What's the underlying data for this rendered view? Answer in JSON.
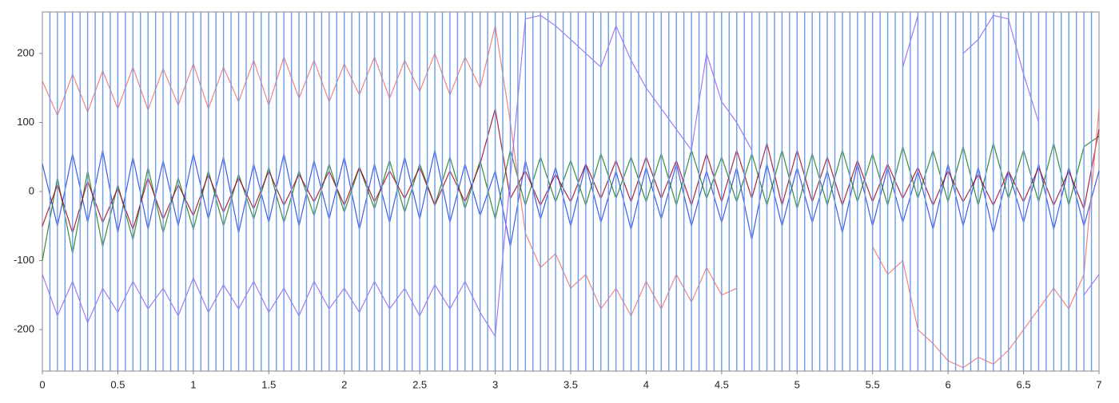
{
  "chart_data": {
    "type": "line",
    "x": [
      0,
      0.1,
      0.2,
      0.3,
      0.4,
      0.5,
      0.6,
      0.7,
      0.8,
      0.9,
      1,
      1.1,
      1.2,
      1.3,
      1.4,
      1.5,
      1.6,
      1.7,
      1.8,
      1.9,
      2,
      2.1,
      2.2,
      2.3,
      2.4,
      2.5,
      2.6,
      2.7,
      2.8,
      2.9,
      3,
      3.1,
      3.2,
      3.3,
      3.4,
      3.5,
      3.6,
      3.7,
      3.8,
      3.9,
      4,
      4.1,
      4.2,
      4.3,
      4.4,
      4.5,
      4.6,
      4.7,
      4.8,
      4.9,
      5,
      5.1,
      5.2,
      5.3,
      5.4,
      5.5,
      5.6,
      5.7,
      5.8,
      5.9,
      6,
      6.1,
      6.2,
      6.3,
      6.4,
      6.5,
      6.6,
      6.7,
      6.8,
      6.9,
      7
    ],
    "series": [
      {
        "color": "#1f3fe0",
        "values": [
          40,
          -50,
          55,
          -45,
          60,
          -60,
          50,
          -55,
          45,
          -50,
          55,
          -40,
          50,
          -60,
          40,
          -45,
          55,
          -50,
          45,
          -40,
          50,
          -55,
          40,
          -45,
          50,
          -40,
          60,
          -45,
          40,
          -35,
          30,
          -80,
          45,
          -40,
          35,
          -50,
          40,
          -45,
          30,
          -55,
          35,
          -40,
          40,
          -50,
          30,
          -45,
          35,
          -70,
          40,
          -50,
          35,
          -45,
          30,
          -60,
          40,
          -50,
          35,
          -45,
          30,
          -55,
          40,
          -50,
          35,
          -60,
          30,
          -45,
          40,
          -55,
          35,
          -50,
          30
        ]
      },
      {
        "color": "#1a7a1a",
        "values": [
          -100,
          20,
          -90,
          30,
          -80,
          10,
          -70,
          35,
          -60,
          20,
          -55,
          30,
          -50,
          25,
          -40,
          35,
          -45,
          30,
          -35,
          40,
          -30,
          35,
          -25,
          45,
          -30,
          40,
          -20,
          50,
          -25,
          45,
          -40,
          60,
          -20,
          50,
          -15,
          45,
          -20,
          55,
          -10,
          50,
          -15,
          55,
          -20,
          60,
          -10,
          50,
          -15,
          55,
          -20,
          60,
          -25,
          55,
          -20,
          60,
          -15,
          55,
          -20,
          65,
          -10,
          60,
          -15,
          65,
          -20,
          70,
          -10,
          60,
          -15,
          70,
          -20,
          65,
          80
        ]
      },
      {
        "color": "#a00020",
        "values": [
          -50,
          10,
          -60,
          15,
          -45,
          5,
          -55,
          20,
          -40,
          10,
          -35,
          25,
          -30,
          20,
          -25,
          30,
          -20,
          25,
          -15,
          30,
          -20,
          35,
          -15,
          30,
          -10,
          35,
          -20,
          30,
          -15,
          40,
          120,
          -10,
          30,
          -20,
          25,
          -15,
          40,
          -10,
          45,
          -15,
          50,
          -10,
          45,
          -20,
          55,
          -15,
          60,
          -10,
          70,
          -20,
          60,
          -15,
          50,
          -20,
          45,
          -15,
          40,
          -10,
          35,
          -20,
          30,
          -15,
          25,
          -20,
          30,
          -15,
          35,
          -20,
          30,
          -25,
          90
        ]
      },
      {
        "color": "#f07070",
        "values": [
          160,
          110,
          170,
          115,
          175,
          120,
          180,
          118,
          178,
          125,
          185,
          120,
          180,
          130,
          190,
          125,
          195,
          135,
          190,
          130,
          185,
          140,
          195,
          135,
          190,
          145,
          200,
          140,
          195,
          150,
          240,
          100,
          -60,
          -110,
          -90,
          -140,
          -120,
          -170,
          -140,
          -180,
          -130,
          -170,
          -120,
          -160,
          -110,
          -150,
          -140,
          null,
          null,
          null,
          null,
          null,
          null,
          null,
          null,
          -80,
          -120,
          -100,
          -200,
          -220,
          -245,
          -255,
          -240,
          -250,
          -230,
          -200,
          -170,
          -140,
          -170,
          -120,
          120
        ]
      },
      {
        "color": "#9a60f0",
        "values": [
          -120,
          -180,
          -130,
          -190,
          -140,
          -175,
          -130,
          -170,
          -140,
          -180,
          -125,
          -175,
          -135,
          -170,
          -130,
          -175,
          -140,
          -180,
          -130,
          -170,
          -140,
          -175,
          -130,
          -170,
          -140,
          -180,
          -135,
          -170,
          -130,
          -175,
          -210,
          20,
          250,
          255,
          240,
          220,
          200,
          180,
          240,
          190,
          150,
          120,
          90,
          60,
          200,
          130,
          100,
          60,
          null,
          null,
          null,
          null,
          null,
          null,
          null,
          null,
          null,
          180,
          255,
          null,
          null,
          200,
          220,
          255,
          250,
          170,
          100,
          null,
          null,
          -150,
          -120
        ]
      }
    ],
    "markers": [
      0.05,
      0.1,
      0.15,
      0.2,
      0.25,
      0.3,
      0.35,
      0.4,
      0.45,
      0.5,
      0.55,
      0.6,
      0.65,
      0.7,
      0.75,
      0.8,
      0.85,
      0.9,
      0.95,
      1,
      1.05,
      1.1,
      1.15,
      1.2,
      1.25,
      1.3,
      1.35,
      1.4,
      1.45,
      1.5,
      1.55,
      1.6,
      1.65,
      1.7,
      1.75,
      1.8,
      1.85,
      1.9,
      1.95,
      2,
      2.05,
      2.1,
      2.15,
      2.2,
      2.25,
      2.3,
      2.35,
      2.4,
      2.45,
      2.5,
      2.55,
      2.6,
      2.65,
      2.7,
      2.75,
      2.8,
      2.85,
      2.9,
      2.95,
      3,
      3.05,
      3.1,
      3.15,
      3.2,
      3.25,
      3.3,
      3.35,
      3.4,
      3.45,
      3.5,
      3.55,
      3.6,
      3.65,
      3.7,
      3.75,
      3.8,
      3.85,
      3.9,
      3.95,
      4,
      4.05,
      4.1,
      4.15,
      4.2,
      4.25,
      4.3,
      4.35,
      4.4,
      4.45,
      4.5,
      4.55,
      4.6,
      4.65,
      4.7,
      4.75,
      4.8,
      4.85,
      4.9,
      4.95,
      5,
      5.05,
      5.1,
      5.15,
      5.2,
      5.25,
      5.3,
      5.35,
      5.4,
      5.45,
      5.5,
      5.55,
      5.6,
      5.65,
      5.7,
      5.75,
      5.8,
      5.85,
      5.9,
      5.95,
      6,
      6.05,
      6.1,
      6.15,
      6.2,
      6.25,
      6.3,
      6.35,
      6.4,
      6.45,
      6.5,
      6.55,
      6.6,
      6.65,
      6.7,
      6.75,
      6.8,
      6.85,
      6.9,
      6.95
    ],
    "marker_color": "#6c9ce8",
    "xlim": [
      0,
      7
    ],
    "xticks": [
      0,
      0.5,
      1,
      1.5,
      2,
      2.5,
      3,
      3.5,
      4,
      4.5,
      5,
      5.5,
      6,
      6.5,
      7
    ],
    "ylim": [
      -260,
      260
    ],
    "yticks": [
      -200,
      -100,
      0,
      100,
      200
    ],
    "grid": false
  }
}
